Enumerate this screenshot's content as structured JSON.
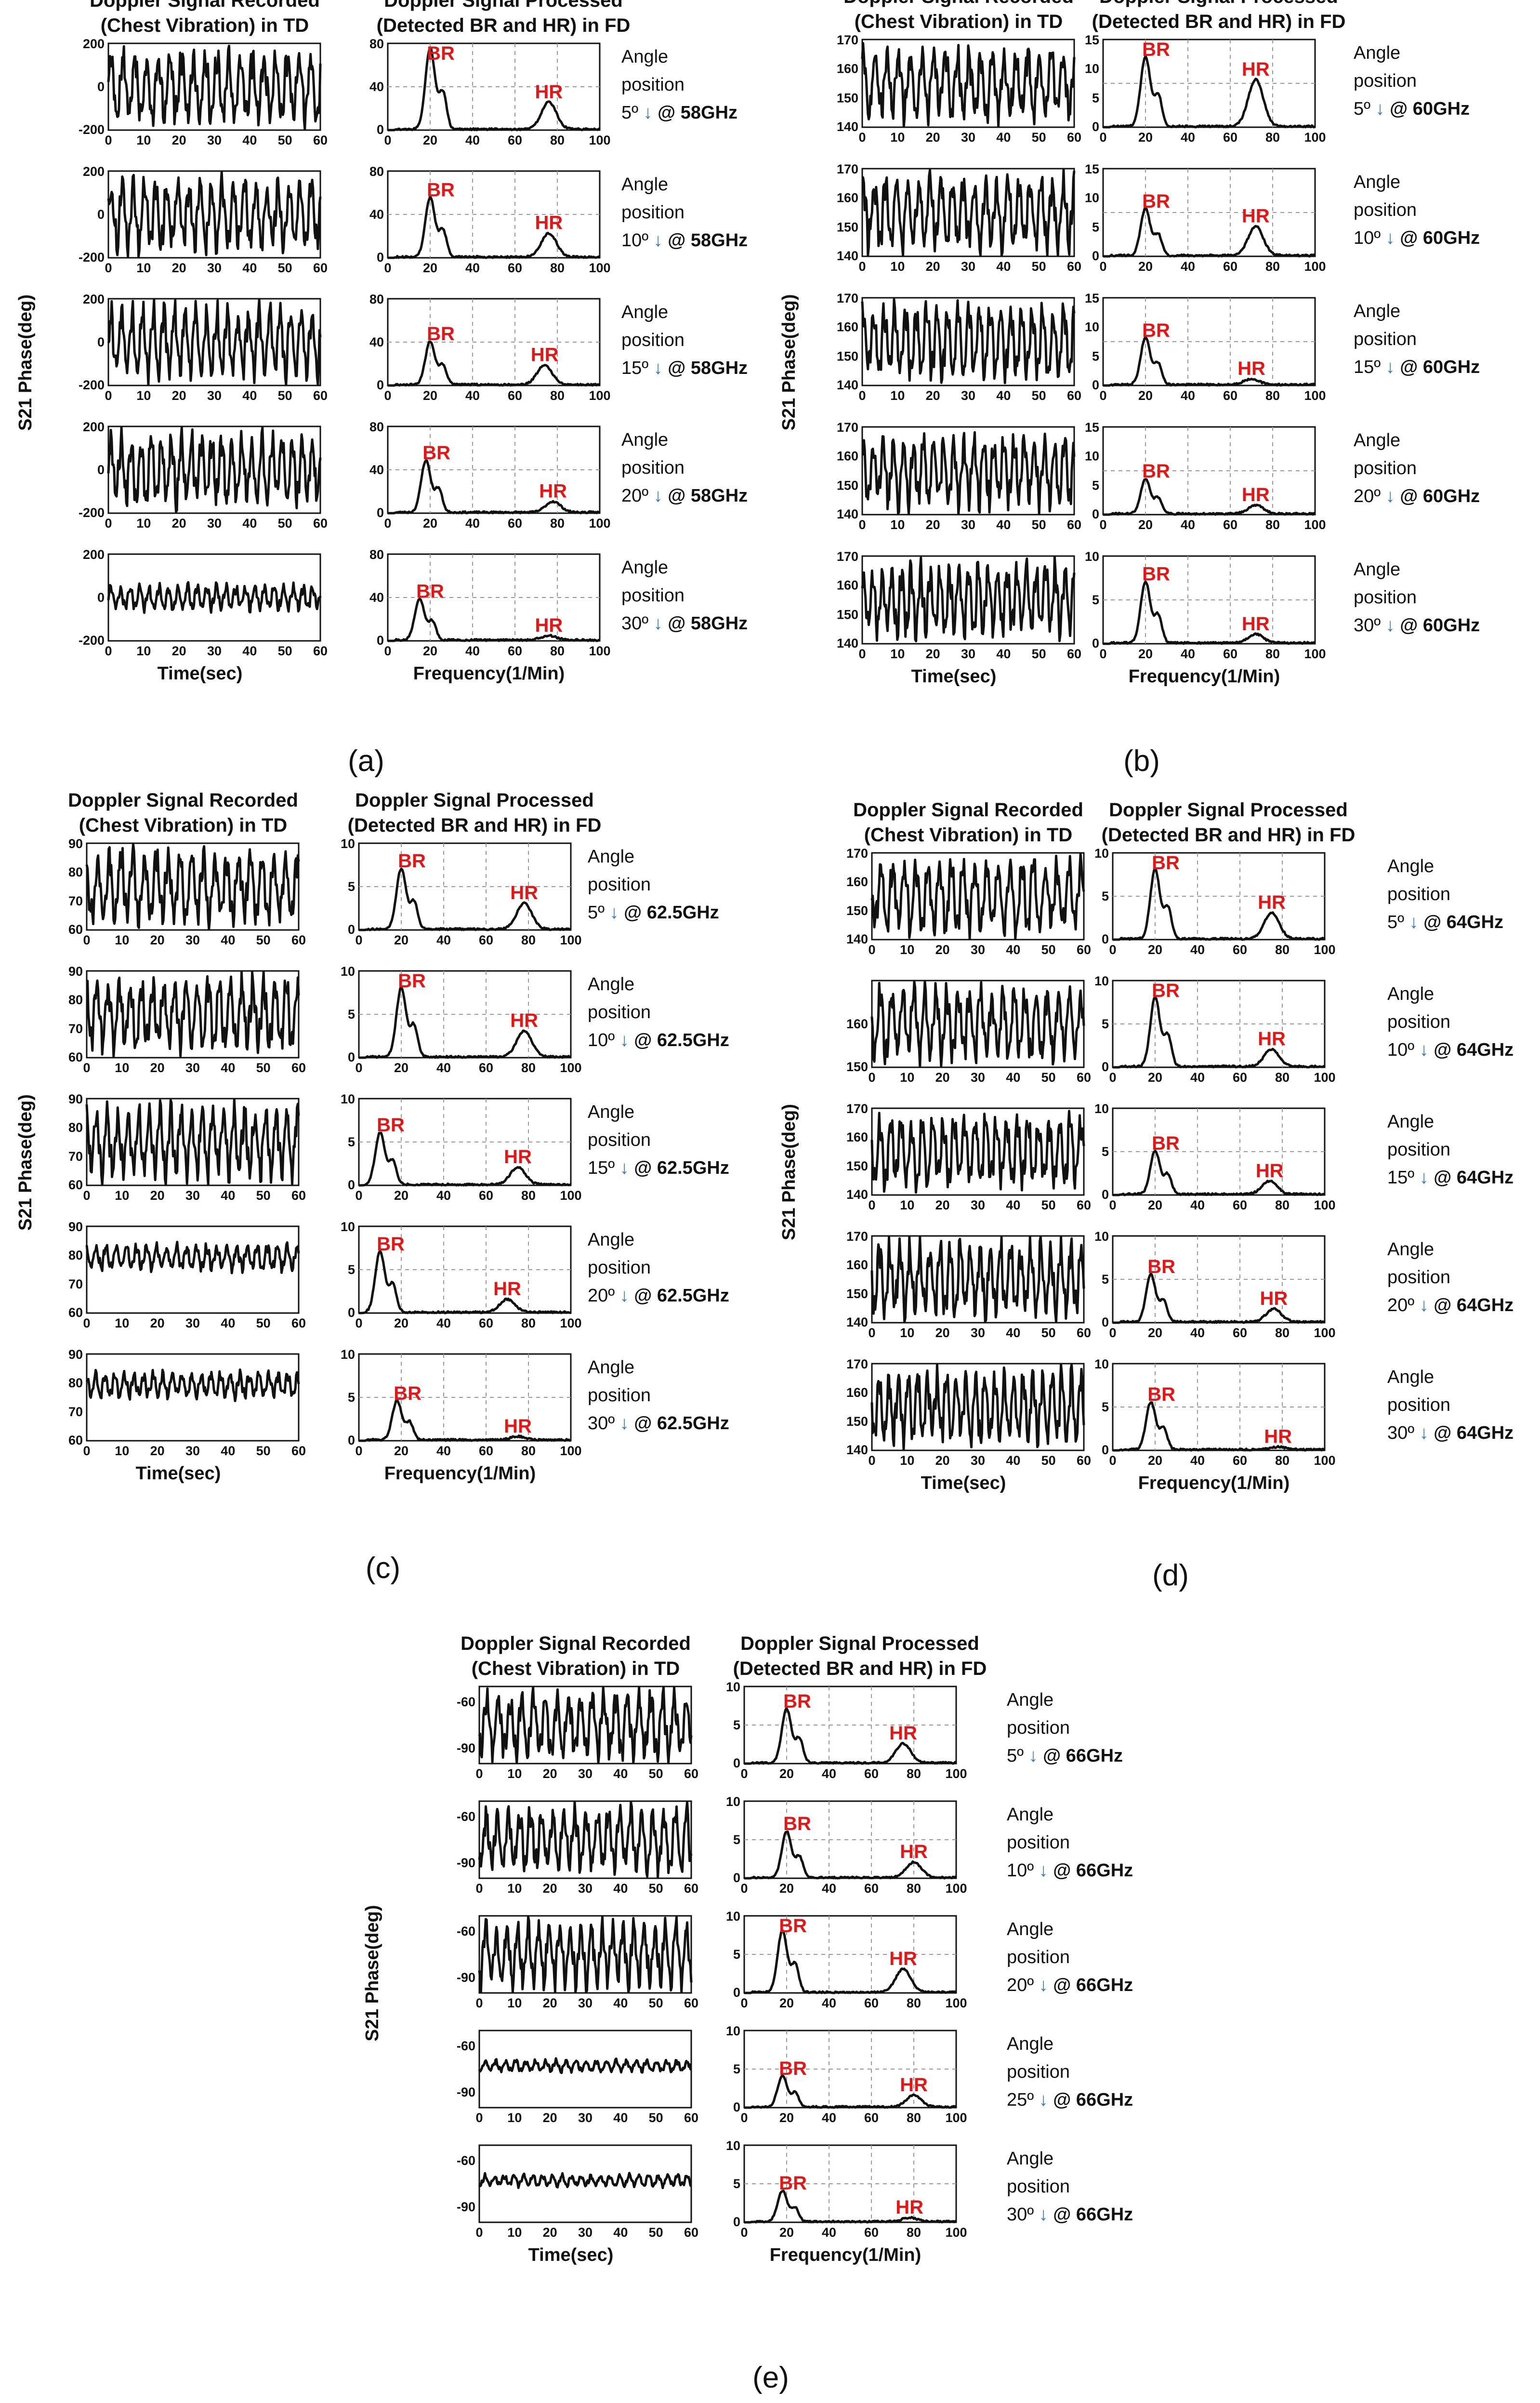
{
  "header": {
    "td_line1": "Doppler Signal Recorded",
    "td_line2": "(Chest Vibration) in TD",
    "fd_line1": "Doppler Signal Processed",
    "fd_line2": "(Detected BR and HR) in FD"
  },
  "axis": {
    "ylabel": "S21 Phase(deg)",
    "td_xlabel": "Time(sec)",
    "fd_xlabel": "Frequency(1/Min)",
    "td_ticks": [
      "0",
      "10",
      "20",
      "30",
      "40",
      "50",
      "60"
    ],
    "fd_ticks": [
      "0",
      "20",
      "40",
      "60",
      "80",
      "100"
    ]
  },
  "labels": {
    "angle_word": "Angle",
    "position_word": "position",
    "arrow": "↓",
    "br": "BR",
    "hr": "HR"
  },
  "colors": {
    "trace": "#111111",
    "peak_label": "#e01818",
    "arrow": "#3a78c3"
  },
  "chart_data": [
    {
      "type": "line",
      "caption": "(a)",
      "frequency": "58GHz",
      "rows": [
        {
          "angle": "5º",
          "td_ylim": [
            -200,
            200
          ],
          "td_yticks": [
            "200",
            "0",
            "-200"
          ],
          "fd_ylim": [
            0,
            80
          ],
          "fd_yticks": [
            "80",
            "40",
            "0"
          ],
          "br_bpm": 20,
          "br_peak": 75,
          "hr_bpm": 76,
          "hr_peak": 25
        },
        {
          "angle": "10º",
          "td_ylim": [
            -200,
            200
          ],
          "td_yticks": [
            "200",
            "0",
            "-200"
          ],
          "fd_ylim": [
            0,
            80
          ],
          "fd_yticks": [
            "80",
            "40",
            "0"
          ],
          "br_bpm": 20,
          "br_peak": 55,
          "hr_bpm": 76,
          "hr_peak": 22
        },
        {
          "angle": "15º",
          "td_ylim": [
            -200,
            200
          ],
          "td_yticks": [
            "200",
            "0",
            "-200"
          ],
          "fd_ylim": [
            0,
            80
          ],
          "fd_yticks": [
            "80",
            "40",
            "0"
          ],
          "br_bpm": 20,
          "br_peak": 40,
          "hr_bpm": 74,
          "hr_peak": 18
        },
        {
          "angle": "20º",
          "td_ylim": [
            -200,
            200
          ],
          "td_yticks": [
            "200",
            "0",
            "-200"
          ],
          "fd_ylim": [
            0,
            80
          ],
          "fd_yticks": [
            "80",
            "40",
            "0"
          ],
          "br_bpm": 18,
          "br_peak": 48,
          "hr_bpm": 78,
          "hr_peak": 10
        },
        {
          "angle": "30º",
          "td_ylim": [
            -200,
            200
          ],
          "td_yticks": [
            "200",
            "0",
            "-200"
          ],
          "fd_ylim": [
            0,
            80
          ],
          "fd_yticks": [
            "80",
            "40",
            "0"
          ],
          "br_bpm": 15,
          "br_peak": 38,
          "hr_bpm": 76,
          "hr_peak": 4
        }
      ]
    },
    {
      "type": "line",
      "caption": "(b)",
      "frequency": "60GHz",
      "rows": [
        {
          "angle": "5º",
          "td_ylim": [
            140,
            170
          ],
          "td_yticks": [
            "170",
            "160",
            "150",
            "140"
          ],
          "fd_ylim": [
            0,
            15
          ],
          "fd_yticks": [
            "15",
            "10",
            "5",
            "0"
          ],
          "br_bpm": 20,
          "br_peak": 12,
          "hr_bpm": 72,
          "hr_peak": 8
        },
        {
          "angle": "10º",
          "td_ylim": [
            140,
            170
          ],
          "td_yticks": [
            "170",
            "160",
            "150",
            "140"
          ],
          "fd_ylim": [
            0,
            15
          ],
          "fd_yticks": [
            "15",
            "10",
            "5",
            "0"
          ],
          "br_bpm": 20,
          "br_peak": 8,
          "hr_bpm": 72,
          "hr_peak": 5
        },
        {
          "angle": "15º",
          "td_ylim": [
            140,
            170
          ],
          "td_yticks": [
            "170",
            "160",
            "150",
            "140"
          ],
          "fd_ylim": [
            0,
            15
          ],
          "fd_yticks": [
            "15",
            "10",
            "5",
            "0"
          ],
          "br_bpm": 20,
          "br_peak": 8,
          "hr_bpm": 70,
          "hr_peak": 1
        },
        {
          "angle": "20º",
          "td_ylim": [
            140,
            170
          ],
          "td_yticks": [
            "170",
            "160",
            "150",
            "140"
          ],
          "fd_ylim": [
            0,
            15
          ],
          "fd_yticks": [
            "15",
            "10",
            "5",
            "0"
          ],
          "br_bpm": 20,
          "br_peak": 6,
          "hr_bpm": 72,
          "hr_peak": 1.5
        },
        {
          "angle": "30º",
          "td_ylim": [
            140,
            170
          ],
          "td_yticks": [
            "170",
            "160",
            "150",
            "140"
          ],
          "fd_ylim": [
            0,
            10
          ],
          "fd_yticks": [
            "10",
            "5",
            "0"
          ],
          "br_bpm": 20,
          "br_peak": 7,
          "hr_bpm": 72,
          "hr_peak": 1
        }
      ]
    },
    {
      "type": "line",
      "caption": "(c)",
      "frequency": "62.5GHz",
      "rows": [
        {
          "angle": "5º",
          "td_ylim": [
            60,
            90
          ],
          "td_yticks": [
            "90",
            "80",
            "70",
            "60"
          ],
          "fd_ylim": [
            0,
            10
          ],
          "fd_yticks": [
            "10",
            "5",
            "0"
          ],
          "br_bpm": 20,
          "br_peak": 7,
          "hr_bpm": 78,
          "hr_peak": 3
        },
        {
          "angle": "10º",
          "td_ylim": [
            60,
            90
          ],
          "td_yticks": [
            "90",
            "80",
            "70",
            "60"
          ],
          "fd_ylim": [
            0,
            10
          ],
          "fd_yticks": [
            "10",
            "5",
            "0"
          ],
          "br_bpm": 20,
          "br_peak": 8,
          "hr_bpm": 78,
          "hr_peak": 3
        },
        {
          "angle": "15º",
          "td_ylim": [
            60,
            90
          ],
          "td_yticks": [
            "90",
            "80",
            "70",
            "60"
          ],
          "fd_ylim": [
            0,
            10
          ],
          "fd_yticks": [
            "10",
            "5",
            "0"
          ],
          "br_bpm": 10,
          "br_peak": 6,
          "hr_bpm": 75,
          "hr_peak": 2
        },
        {
          "angle": "20º",
          "td_ylim": [
            60,
            90
          ],
          "td_yticks": [
            "90",
            "80",
            "70",
            "60"
          ],
          "fd_ylim": [
            0,
            10
          ],
          "fd_yticks": [
            "10",
            "5",
            "0"
          ],
          "br_bpm": 10,
          "br_peak": 7,
          "hr_bpm": 70,
          "hr_peak": 1.5
        },
        {
          "angle": "30º",
          "td_ylim": [
            60,
            90
          ],
          "td_yticks": [
            "90",
            "80",
            "70",
            "60"
          ],
          "fd_ylim": [
            0,
            10
          ],
          "fd_yticks": [
            "10",
            "5",
            "0"
          ],
          "br_bpm": 18,
          "br_peak": 4.5,
          "hr_bpm": 75,
          "hr_peak": 0.4
        }
      ]
    },
    {
      "type": "line",
      "caption": "(d)",
      "frequency": "64GHz",
      "rows": [
        {
          "angle": "5º",
          "td_ylim": [
            140,
            170
          ],
          "td_yticks": [
            "170",
            "160",
            "150",
            "140"
          ],
          "fd_ylim": [
            0,
            10
          ],
          "fd_yticks": [
            "10",
            "5",
            "0"
          ],
          "br_bpm": 20,
          "br_peak": 8,
          "hr_bpm": 75,
          "hr_peak": 3
        },
        {
          "angle": "10º",
          "td_ylim": [
            150,
            170
          ],
          "td_yticks": [
            "160",
            "150"
          ],
          "fd_ylim": [
            0,
            10
          ],
          "fd_yticks": [
            "10",
            "5",
            "0"
          ],
          "br_bpm": 20,
          "br_peak": 8,
          "hr_bpm": 75,
          "hr_peak": 2
        },
        {
          "angle": "15º",
          "td_ylim": [
            140,
            170
          ],
          "td_yticks": [
            "170",
            "160",
            "150",
            "140"
          ],
          "fd_ylim": [
            0,
            10
          ],
          "fd_yticks": [
            "10",
            "5",
            "0"
          ],
          "br_bpm": 20,
          "br_peak": 5,
          "hr_bpm": 74,
          "hr_peak": 1.5
        },
        {
          "angle": "20º",
          "td_ylim": [
            140,
            170
          ],
          "td_yticks": [
            "170",
            "160",
            "150",
            "140"
          ],
          "fd_ylim": [
            0,
            10
          ],
          "fd_yticks": [
            "10",
            "5",
            "0"
          ],
          "br_bpm": 18,
          "br_peak": 5.5,
          "hr_bpm": 76,
          "hr_peak": 1.5
        },
        {
          "angle": "30º",
          "td_ylim": [
            140,
            170
          ],
          "td_yticks": [
            "170",
            "160",
            "150",
            "140"
          ],
          "fd_ylim": [
            0,
            10
          ],
          "fd_yticks": [
            "10",
            "5",
            "0"
          ],
          "br_bpm": 18,
          "br_peak": 5.5,
          "hr_bpm": 78,
          "hr_peak": 0.3
        }
      ]
    },
    {
      "type": "line",
      "caption": "(e)",
      "frequency": "66GHz",
      "rows": [
        {
          "angle": "5º",
          "td_ylim": [
            -100,
            -50
          ],
          "td_yticks": [
            "-60",
            "-90"
          ],
          "fd_ylim": [
            0,
            10
          ],
          "fd_yticks": [
            "10",
            "5",
            "0"
          ],
          "br_bpm": 20,
          "br_peak": 7,
          "hr_bpm": 75,
          "hr_peak": 2.5
        },
        {
          "angle": "10º",
          "td_ylim": [
            -100,
            -50
          ],
          "td_yticks": [
            "-60",
            "-90"
          ],
          "fd_ylim": [
            0,
            10
          ],
          "fd_yticks": [
            "10",
            "5",
            "0"
          ],
          "br_bpm": 20,
          "br_peak": 6,
          "hr_bpm": 80,
          "hr_peak": 2
        },
        {
          "angle": "20º",
          "td_ylim": [
            -100,
            -50
          ],
          "td_yticks": [
            "-60",
            "-90"
          ],
          "fd_ylim": [
            0,
            10
          ],
          "fd_yticks": [
            "10",
            "5",
            "0"
          ],
          "br_bpm": 18,
          "br_peak": 8,
          "hr_bpm": 75,
          "hr_peak": 3
        },
        {
          "angle": "25º",
          "td_ylim": [
            -100,
            -50
          ],
          "td_yticks": [
            "-60",
            "-90"
          ],
          "fd_ylim": [
            0,
            10
          ],
          "fd_yticks": [
            "10",
            "5",
            "0"
          ],
          "br_bpm": 18,
          "br_peak": 4,
          "hr_bpm": 80,
          "hr_peak": 1.5
        },
        {
          "angle": "30º",
          "td_ylim": [
            -100,
            -50
          ],
          "td_yticks": [
            "-60",
            "-90"
          ],
          "fd_ylim": [
            0,
            10
          ],
          "fd_yticks": [
            "10",
            "5",
            "0"
          ],
          "br_bpm": 18,
          "br_peak": 4,
          "hr_bpm": 78,
          "hr_peak": 0.5
        }
      ]
    }
  ]
}
